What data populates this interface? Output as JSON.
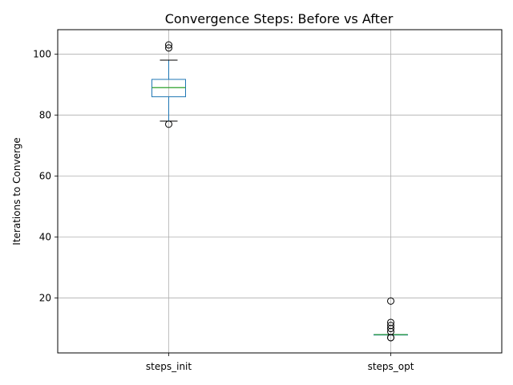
{
  "chart_data": {
    "type": "box",
    "title": "Convergence Steps: Before vs After",
    "xlabel": "",
    "ylabel": "Iterations to Converge",
    "categories": [
      "steps_init",
      "steps_opt"
    ],
    "ylim": [
      2,
      108
    ],
    "yticks": [
      20,
      40,
      60,
      80,
      100
    ],
    "grid": true,
    "boxes": [
      {
        "category": "steps_init",
        "q1": 86,
        "median": 89,
        "q3": 91.7,
        "whisker_low": 78,
        "whisker_high": 98,
        "outliers": [
          77,
          102,
          103
        ]
      },
      {
        "category": "steps_opt",
        "q1": 8,
        "median": 8,
        "q3": 8,
        "whisker_low": 8,
        "whisker_high": 8,
        "outliers": [
          7,
          7,
          9,
          10,
          11,
          12,
          19
        ]
      }
    ],
    "colors": {
      "box": "#1f77b4",
      "median": "#2ca02c",
      "grid": "#b0b0b0",
      "axis": "#000000"
    }
  }
}
